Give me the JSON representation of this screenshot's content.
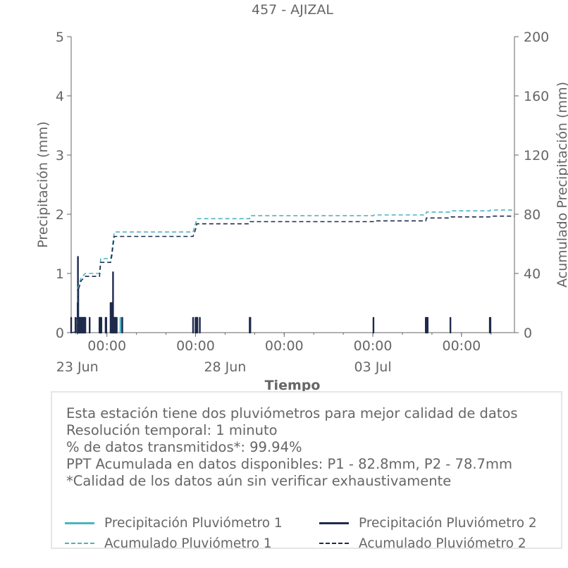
{
  "chart_data": {
    "type": "bar+line",
    "title": "457 - AJIZAL",
    "xlabel": "Tiempo",
    "ylabel_left": "Precipitación (mm)",
    "ylabel_right": "Acumulado Precipitación (mm)",
    "ylim_left": [
      0,
      5
    ],
    "ylim_right": [
      0,
      200
    ],
    "yticks_left": [
      "0",
      "1",
      "2",
      "3",
      "4",
      "5"
    ],
    "yticks_right": [
      "0",
      "40",
      "80",
      "120",
      "160",
      "200"
    ],
    "x_range_days": [
      "2024-06-22T19:00",
      "2024-07-07T19:00"
    ],
    "x_major_ticks": [
      {
        "t": "2024-06-24T00:00",
        "label": "00:00"
      },
      {
        "t": "2024-06-27T00:00",
        "label": "00:00"
      },
      {
        "t": "2024-06-30T00:00",
        "label": "00:00"
      },
      {
        "t": "2024-07-03T00:00",
        "label": "00:00"
      },
      {
        "t": "2024-07-06T00:00",
        "label": "00:00"
      }
    ],
    "x_date_labels": [
      {
        "t": "2024-06-23T00:00",
        "label": "23 Jun"
      },
      {
        "t": "2024-06-28T00:00",
        "label": "28 Jun"
      },
      {
        "t": "2024-07-03T00:00",
        "label": "03 Jul"
      }
    ],
    "legend_placement": "bottom",
    "grid": false,
    "series": [
      {
        "name": "Precipitación Pluviómetro 1",
        "kind": "bar",
        "axis": "left",
        "color": "#4db3c2",
        "points": [
          [
            "2024-06-24T11:00",
            0.25
          ],
          [
            "2024-06-24T11:30",
            0.25
          ]
        ]
      },
      {
        "name": "Precipitación Pluviómetro 2",
        "kind": "bar",
        "axis": "left",
        "color": "#1f2a4d",
        "points": [
          [
            "2024-06-22T19:00",
            0.25
          ],
          [
            "2024-06-22T22:30",
            0.25
          ],
          [
            "2024-06-23T00:00",
            0.25
          ],
          [
            "2024-06-23T00:15",
            0.5
          ],
          [
            "2024-06-23T00:30",
            1.28
          ],
          [
            "2024-06-23T00:45",
            0.75
          ],
          [
            "2024-06-23T01:00",
            0.25
          ],
          [
            "2024-06-23T01:30",
            0.25
          ],
          [
            "2024-06-23T02:00",
            0.25
          ],
          [
            "2024-06-23T02:30",
            0.25
          ],
          [
            "2024-06-23T03:00",
            0.25
          ],
          [
            "2024-06-23T03:30",
            0.25
          ],
          [
            "2024-06-23T04:00",
            0.25
          ],
          [
            "2024-06-23T04:30",
            0.25
          ],
          [
            "2024-06-23T05:00",
            0.25
          ],
          [
            "2024-06-23T05:30",
            0.25
          ],
          [
            "2024-06-23T06:00",
            0.25
          ],
          [
            "2024-06-23T06:30",
            0.25
          ],
          [
            "2024-06-23T10:00",
            0.25
          ],
          [
            "2024-06-23T18:00",
            0.25
          ],
          [
            "2024-06-23T18:30",
            0.25
          ],
          [
            "2024-06-23T19:00",
            0.25
          ],
          [
            "2024-06-23T19:30",
            0.25
          ],
          [
            "2024-06-23T23:00",
            0.25
          ],
          [
            "2024-06-23T23:30",
            0.25
          ],
          [
            "2024-06-23T00:00",
            0.25
          ],
          [
            "2024-06-24T03:00",
            0.5
          ],
          [
            "2024-06-24T04:00",
            0.5
          ],
          [
            "2024-06-24T04:30",
            0.25
          ],
          [
            "2024-06-24T05:00",
            1.02
          ],
          [
            "2024-06-24T05:30",
            0.25
          ],
          [
            "2024-06-24T06:00",
            0.25
          ],
          [
            "2024-06-24T06:30",
            0.25
          ],
          [
            "2024-06-24T07:00",
            0.25
          ],
          [
            "2024-06-24T07:30",
            0.25
          ],
          [
            "2024-06-24T08:00",
            0.25
          ],
          [
            "2024-06-24T12:30",
            0.25
          ],
          [
            "2024-06-26T22:00",
            0.25
          ],
          [
            "2024-06-27T00:00",
            0.25
          ],
          [
            "2024-06-27T00:30",
            0.25
          ],
          [
            "2024-06-27T01:00",
            0.25
          ],
          [
            "2024-06-27T01:30",
            0.25
          ],
          [
            "2024-06-27T03:30",
            0.25
          ],
          [
            "2024-06-28T20:00",
            0.25
          ],
          [
            "2024-06-28T20:30",
            0.25
          ],
          [
            "2024-07-03T00:30",
            0.25
          ],
          [
            "2024-07-04T19:00",
            0.25
          ],
          [
            "2024-07-04T19:30",
            0.25
          ],
          [
            "2024-07-04T20:30",
            0.25
          ],
          [
            "2024-07-05T15:00",
            0.25
          ],
          [
            "2024-07-06T23:00",
            0.25
          ],
          [
            "2024-07-06T23:30",
            0.25
          ]
        ]
      },
      {
        "name": "Acumulado Pluviómetro 1",
        "kind": "line",
        "axis": "right",
        "color": "#4db3c2",
        "dash": "6 4",
        "points": [
          [
            "2024-06-22T19:00",
            0
          ],
          [
            "2024-06-23T00:00",
            0.5
          ],
          [
            "2024-06-23T00:15",
            10
          ],
          [
            "2024-06-23T00:30",
            30
          ],
          [
            "2024-06-23T03:00",
            37
          ],
          [
            "2024-06-23T06:30",
            40
          ],
          [
            "2024-06-23T18:00",
            40
          ],
          [
            "2024-06-23T19:00",
            50
          ],
          [
            "2024-06-24T03:00",
            50
          ],
          [
            "2024-06-24T04:00",
            55
          ],
          [
            "2024-06-24T05:00",
            62
          ],
          [
            "2024-06-24T06:00",
            68
          ],
          [
            "2024-06-26T22:00",
            68
          ],
          [
            "2024-06-27T00:30",
            75
          ],
          [
            "2024-06-27T01:00",
            77
          ],
          [
            "2024-06-28T20:00",
            77
          ],
          [
            "2024-06-28T20:30",
            79
          ],
          [
            "2024-07-03T00:30",
            79
          ],
          [
            "2024-07-03T01:00",
            79.5
          ],
          [
            "2024-07-04T19:00",
            79.5
          ],
          [
            "2024-07-04T19:30",
            81.5
          ],
          [
            "2024-07-05T15:00",
            81.5
          ],
          [
            "2024-07-05T15:30",
            82.3
          ],
          [
            "2024-07-06T23:00",
            82.3
          ],
          [
            "2024-07-06T23:30",
            82.8
          ],
          [
            "2024-07-07T19:00",
            82.8
          ]
        ]
      },
      {
        "name": "Acumulado Pluviómetro 2",
        "kind": "line",
        "axis": "right",
        "color": "#1f2a4d",
        "dash": "6 4",
        "points": [
          [
            "2024-06-22T19:00",
            0
          ],
          [
            "2024-06-23T00:00",
            0.5
          ],
          [
            "2024-06-23T00:15",
            9
          ],
          [
            "2024-06-23T00:30",
            28
          ],
          [
            "2024-06-23T03:00",
            35
          ],
          [
            "2024-06-23T06:30",
            38
          ],
          [
            "2024-06-23T18:00",
            38
          ],
          [
            "2024-06-23T19:00",
            47.5
          ],
          [
            "2024-06-24T03:00",
            47.5
          ],
          [
            "2024-06-24T04:00",
            52
          ],
          [
            "2024-06-24T05:00",
            59
          ],
          [
            "2024-06-24T06:00",
            65
          ],
          [
            "2024-06-26T22:00",
            65
          ],
          [
            "2024-06-27T00:30",
            71
          ],
          [
            "2024-06-27T01:00",
            73.5
          ],
          [
            "2024-06-28T20:00",
            73.5
          ],
          [
            "2024-06-28T20:30",
            75
          ],
          [
            "2024-07-03T00:30",
            75
          ],
          [
            "2024-07-03T01:00",
            75.5
          ],
          [
            "2024-07-04T19:00",
            75.5
          ],
          [
            "2024-07-04T19:30",
            77.5
          ],
          [
            "2024-07-05T15:00",
            77.5
          ],
          [
            "2024-07-05T15:30",
            78.2
          ],
          [
            "2024-07-06T23:00",
            78.2
          ],
          [
            "2024-07-06T23:30",
            78.7
          ],
          [
            "2024-07-07T19:00",
            78.7
          ]
        ]
      }
    ]
  },
  "info": {
    "lines": [
      "Esta estación tiene dos pluviómetros para mejor calidad de datos",
      "Resolución temporal: 1 minuto",
      "% de datos transmitidos*: 99.94%",
      "PPT Acumulada en datos disponibles: P1 - 82.8mm, P2 - 78.7mm",
      "*Calidad de los datos aún sin verificar exhaustivamente"
    ]
  },
  "legend": {
    "items": [
      {
        "label": "Precipitación Pluviómetro 1",
        "color": "#4db3c2",
        "style": "solid"
      },
      {
        "label": "Precipitación Pluviómetro 2",
        "color": "#1f2a4d",
        "style": "solid"
      },
      {
        "label": "Acumulado Pluviómetro 1",
        "color": "#4db3c2",
        "style": "dashed"
      },
      {
        "label": "Acumulado Pluviómetro 2",
        "color": "#1f2a4d",
        "style": "dashed"
      }
    ]
  }
}
